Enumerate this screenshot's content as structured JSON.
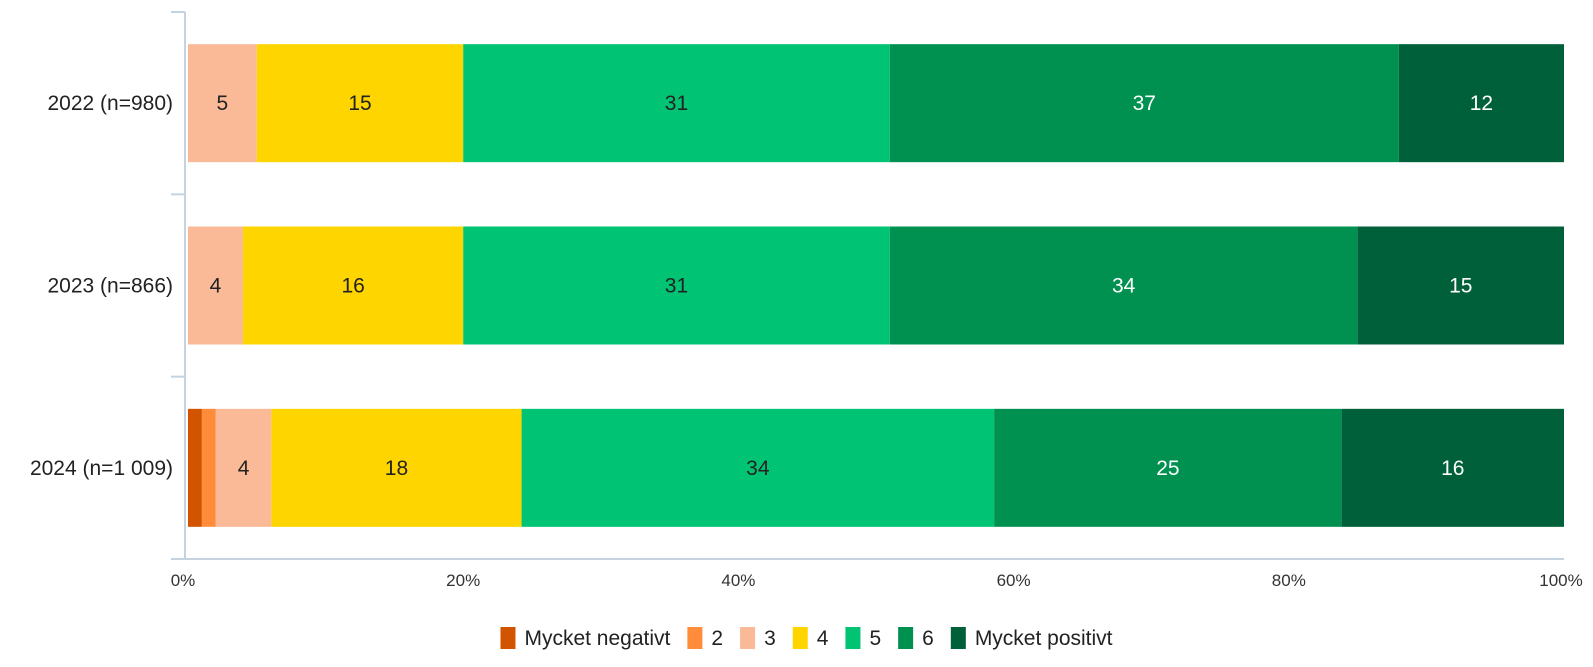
{
  "chart_data": {
    "type": "bar",
    "orientation": "horizontal",
    "stacked": "percent",
    "categories": [
      "2022 (n=980)",
      "2023 (n=866)",
      "2024 (n=1 009)"
    ],
    "series": [
      {
        "name": "Mycket negativt",
        "color": "#D35400",
        "label_color": "#222222",
        "values": [
          0,
          0,
          1
        ]
      },
      {
        "name": "2",
        "color": "#FF8C3A",
        "label_color": "#222222",
        "values": [
          0,
          0,
          1
        ]
      },
      {
        "name": "3",
        "color": "#FABA97",
        "label_color": "#222222",
        "values": [
          5,
          4,
          4
        ]
      },
      {
        "name": "4",
        "color": "#FFD500",
        "label_color": "#222222",
        "values": [
          15,
          16,
          18
        ]
      },
      {
        "name": "5",
        "color": "#00C474",
        "label_color": "#222222",
        "values": [
          31,
          31,
          34
        ]
      },
      {
        "name": "6",
        "color": "#009150",
        "label_color": "#ffffff",
        "values": [
          37,
          34,
          25
        ]
      },
      {
        "name": "Mycket positivt",
        "color": "#00603A",
        "label_color": "#ffffff",
        "values": [
          12,
          15,
          16
        ]
      }
    ],
    "labels_hidden_below": 2,
    "xlim": [
      0,
      100
    ],
    "xticks": [
      "0%",
      "20%",
      "40%",
      "60%",
      "80%",
      "100%"
    ],
    "grid": false,
    "legend": "bottom-center",
    "title": "",
    "xlabel": "",
    "ylabel": ""
  },
  "colors": {
    "axis": "#C5D3E0"
  }
}
